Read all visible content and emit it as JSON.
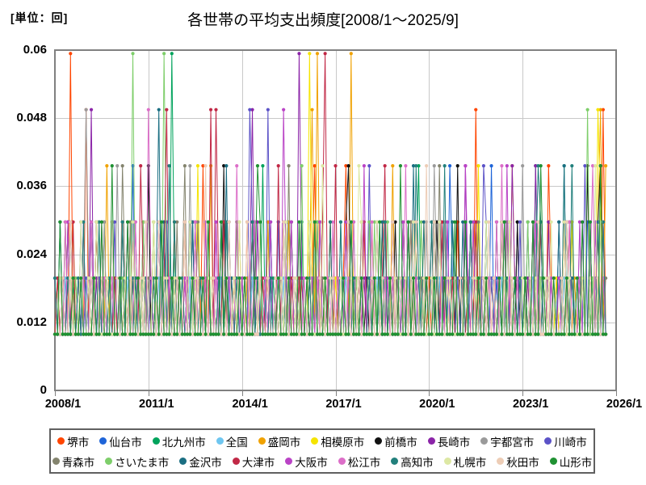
{
  "chart_data": {
    "type": "line",
    "title": "各世帯の平均支出頻度[2008/1～2025/9]",
    "unit_label": "[単位：回]",
    "x_start": "2008/1",
    "x_end_data": "2025/9",
    "x_axis_end": "2026/1",
    "months_total": 216,
    "months_with_data": 213,
    "x_tick_labels": [
      "2008/1",
      "2011/1",
      "2014/1",
      "2017/1",
      "2020/1",
      "2023/1",
      "2026/1"
    ],
    "x_tick_month_index": [
      0,
      36,
      72,
      108,
      144,
      180,
      216
    ],
    "ylim": [
      0,
      0.06
    ],
    "y_tick_values": [
      0,
      0.012,
      0.024,
      0.036,
      0.048,
      0.06
    ],
    "y_tick_labels": [
      "0",
      "0.012",
      "0.024",
      "0.036",
      "0.048",
      "0.06"
    ],
    "grid": true,
    "legend_position": "bottom",
    "frame_color": "#808080",
    "grid_color": "#c8c8c8",
    "value_quantum": 0.0099,
    "encoding": "series.pattern = one digit per month starting 2008/1; monthly value = digit * value_quantum (unit: 回)",
    "series": [
      {
        "name": "堺市",
        "color": "#FF4500",
        "pattern": "111111611121512111211121112111211131111211311121112111211412121131112111113111121121111131211112111241121131111241121131121112131111111213111211211112111213112131511121112111211131111131211142111211311121112113151"
      },
      {
        "name": "仙台市",
        "color": "#1E64D8",
        "pattern": "111211311121113111121121112111411131121131112111111131211112111213111211211112111213121112131111113111121121111211311121112111211131111131211112111213114211121131112111412111211131113111121121121112131111133111331"
      },
      {
        "name": "北九州市",
        "color": "#00A35C",
        "pattern": "113111121121121112131111121131112111111211311621111213111211111131211112112111214131211112111213121131112111121112131111111211311121113111124121111131211112111213111211121131112111121114131111113141121121112111311"
      },
      {
        "name": "全国",
        "color": "#6EC6F0",
        "pattern": "111121111211111121111211111121111211111121111211111121111211111121111211111121111211111121111211111121111211111121111211111121111211111121111211111121111211111121111211111121111211111121111211111121111211111121111"
      },
      {
        "name": "盛岡市",
        "color": "#F0A202",
        "pattern": "121131112111111131214112111213111211113111121121121112131111411112111213112111211131111211311121112516112111121131612111113111121141121112131111111211311121111131211112111213114211112111211131121131112111112113514"
      },
      {
        "name": "相模原市",
        "color": "#F5E400",
        "pattern": "121112131111111211311121111131211112112111211131113111141121111213111211121131112111121112131111116211121131211112111213111211311121112111211131113111121121111213141211111131211112121131112111121112131111111215311"
      },
      {
        "name": "前橋市",
        "color": "#111111",
        "pattern": "111213111211121131112111113111121121411131211112111211311121121114131111111131211112111213111211112111211131121134112111211112111213113111121121131313112114113131311211213131112131111211311121111213111211141213411"
      },
      {
        "name": "長崎市",
        "color": "#8B24A8",
        "pattern": "211112111213115121112111121112131111121131112111112111211131113111121121111251311121111131211162111213111211111131211112121131112111111211311121121112131111114111121121111213114211112114211131211112111213112131121"
      },
      {
        "name": "宇都宮市",
        "color": "#9A9A9A",
        "pattern": "111131211112521112131111412111211131111213111211121141112111111211311121121112131111113111121121111131211112112111211131111213111211211112111213114211311121121131112111113111121121411131211112112111211131113121131"
      },
      {
        "name": "川崎市",
        "color": "#5B52C7",
        "pattern": "112111211131211112111213111211311121121112131111111213111211111131211112121531112151113111121121111211311121111213111211141112131111121131112111111131211112112111211431211112111213111213111211113111121121411211311"
      },
      {
        "name": "青森市",
        "color": "#84846E",
        "pattern": "111211311121113111121121114213111211211112111213124112131111112111211131111213111211121131412111113111121121111211311121111131211112111213111211121141112111121112131111111211311121113111121121111131211112112113112"
      },
      {
        "name": "さいたま市",
        "color": "#7ECE6A",
        "pattern": "121131112111111213111211112111611131113111621121211112111213111211311121121112131111111131211114111213111211121131112111131311213111113131121311112111211131111211311121121112131111113111121121111213111211151211311"
      },
      {
        "name": "金沢市",
        "color": "#1A6E82",
        "pattern": "113111121121112111211131111131211112111251311121111213111211121131412111211112111213121112131111111131211112113111121121111211311121112111411131113131211311131131121131111213111211121131112111113141121121112113111"
      },
      {
        "name": "大津市",
        "color": "#C12846",
        "pattern": "121112131111111131211112111211311421112111251131113111121121515213111211121131112111114111121121121112136111411112111213112111241131111131211112111213111211111211311121121131112111121112131111111131211112112112131"
      },
      {
        "name": "大阪市",
        "color": "#BA43C6",
        "pattern": "111213111211111211311121121131112111111131211112112111211131113111121121211112111213121152131111111211311121111131211114121131112111113111121121121112131111114213111211111211411121111131211112112111211131112131131"
      },
      {
        "name": "松江市",
        "color": "#DC6EC8",
        "pattern": "111131211112113111121121121112131111521131112111111211311121112111211141111213111211112111211131211112111213121112131111113111121121111411311121121131112111111131211112113141121121111213111211111211311121112411121"
      },
      {
        "name": "高知市",
        "color": "#22807C",
        "pattern": "211112111213111213111211113111121121112111214131121131112111111211311121111131211112111213111211112111211131113111121121121112131111121131142111131211411321113131211131111131211112121112431111111213141211113112131"
      },
      {
        "name": "札幌市",
        "color": "#DDE8A4",
        "pattern": "112111211131121131112111111211311121113111121121111131211112211112111213121112131111111213111211113111141121112111211431111131211112111211311121121131112111112111211131121112131111211112111213111131211112112141311"
      },
      {
        "name": "秋田市",
        "color": "#EDCDB6",
        "pattern": "111211311121112111211131211112111213111131211112113111121141121112131111113111121121121131112111111131211112111213111211112111211131121112131114113111121121211112111213121131112111111211311121111213111211112112111"
      },
      {
        "name": "山形市",
        "color": "#1F9132",
        "pattern": "113111121121111211311141121131112111111213111211211112111213111131211112121112431111112111211131121131112111111211311121111213111211141131211112112111211131113111121121111213111211121131142111211112111213113111411"
      }
    ]
  }
}
